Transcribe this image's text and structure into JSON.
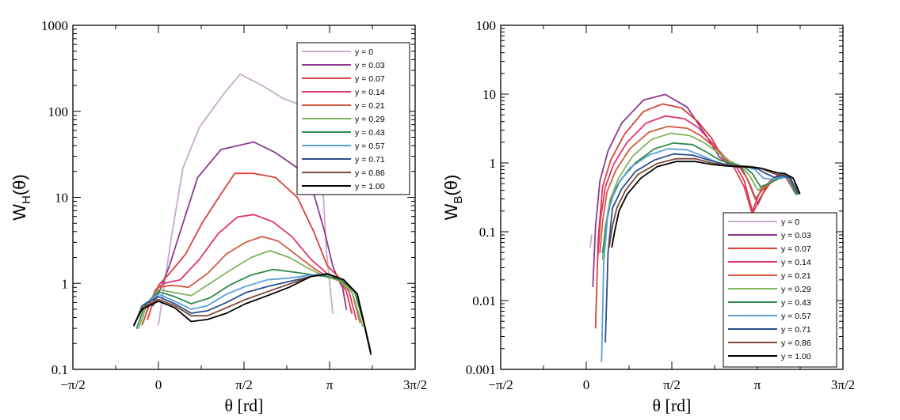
{
  "chart_data": [
    {
      "type": "line",
      "ylabel_main": "W",
      "ylabel_sub": "H",
      "ylabel_tail": "(θ)",
      "xlabel": "θ [rd]",
      "yscale": "log",
      "ylim": [
        0.1,
        1000
      ],
      "xlim": [
        -1.5708,
        4.7124
      ],
      "x_ticks": [
        {
          "value": -1.5708,
          "label": "−π/2"
        },
        {
          "value": 0,
          "label": "0"
        },
        {
          "value": 1.5708,
          "label": "π/2"
        },
        {
          "value": 3.1416,
          "label": "π"
        },
        {
          "value": 4.7124,
          "label": "3π/2"
        }
      ],
      "y_ticks": [
        {
          "value": 0.1,
          "label": "0.1"
        },
        {
          "value": 1,
          "label": "1"
        },
        {
          "value": 10,
          "label": "10"
        },
        {
          "value": 100,
          "label": "100"
        },
        {
          "value": 1000,
          "label": "1000"
        }
      ],
      "legend_position": "top-right",
      "series": [
        {
          "name": "y = 0",
          "color": "#c9a8cf",
          "x": [
            0.0,
            0.23,
            0.45,
            0.75,
            1.2,
            1.5,
            1.9,
            2.3,
            2.75,
            2.92,
            3.0,
            3.08,
            3.2
          ],
          "y": [
            0.33,
            3.2,
            22,
            65,
            160,
            270,
            200,
            140,
            110,
            100,
            22,
            2.5,
            0.45
          ]
        },
        {
          "name": "y = 0.03",
          "color": "#8b3a8f",
          "x": [
            -0.1,
            -0.02,
            0.05,
            0.2,
            0.45,
            0.72,
            1.15,
            1.75,
            2.15,
            2.55,
            2.85,
            3.05,
            3.2,
            3.3,
            3.38,
            3.45
          ],
          "y": [
            0.55,
            0.72,
            0.9,
            1.6,
            5,
            17,
            36,
            44,
            33,
            22,
            11,
            4,
            1.6,
            1.1,
            0.9,
            0.5
          ]
        },
        {
          "name": "y = 0.07",
          "color": "#d9413a",
          "x": [
            -0.2,
            -0.1,
            0.0,
            0.2,
            0.5,
            0.8,
            1.15,
            1.4,
            1.75,
            2.15,
            2.55,
            2.85,
            3.1,
            3.3,
            3.45,
            3.55
          ],
          "y": [
            0.38,
            0.6,
            0.95,
            1.3,
            2.2,
            5,
            11,
            19,
            19,
            17,
            10,
            4,
            1.6,
            1.2,
            0.8,
            0.45
          ]
        },
        {
          "name": "y = 0.14",
          "color": "#e2336e",
          "x": [
            -0.28,
            -0.18,
            -0.05,
            0.1,
            0.4,
            0.75,
            1.1,
            1.45,
            1.75,
            2.1,
            2.45,
            2.8,
            3.1,
            3.35,
            3.5,
            3.63
          ],
          "y": [
            0.35,
            0.55,
            0.85,
            1.0,
            1.1,
            1.9,
            3.8,
            5.9,
            6.3,
            5.2,
            3.5,
            1.9,
            1.3,
            1.1,
            0.8,
            0.38
          ]
        },
        {
          "name": "y = 0.21",
          "color": "#cf5c3f",
          "x": [
            -0.3,
            -0.15,
            0.0,
            0.25,
            0.55,
            0.9,
            1.25,
            1.6,
            1.9,
            2.2,
            2.55,
            2.85,
            3.1,
            3.35,
            3.55,
            3.7
          ],
          "y": [
            0.33,
            0.6,
            0.9,
            0.95,
            0.9,
            1.3,
            2.2,
            3.0,
            3.5,
            3.1,
            2.1,
            1.5,
            1.2,
            1.05,
            0.8,
            0.35
          ]
        },
        {
          "name": "y = 0.29",
          "color": "#7fb55a",
          "x": [
            -0.36,
            -0.2,
            0.0,
            0.3,
            0.6,
            0.95,
            1.3,
            1.7,
            2.05,
            2.4,
            2.75,
            3.05,
            3.3,
            3.55,
            3.75
          ],
          "y": [
            0.3,
            0.6,
            0.85,
            0.78,
            0.72,
            1.0,
            1.4,
            2.0,
            2.4,
            2.0,
            1.5,
            1.2,
            1.1,
            0.8,
            0.32
          ]
        },
        {
          "name": "y = 0.43",
          "color": "#2f8a4c",
          "x": [
            -0.4,
            -0.25,
            0.0,
            0.3,
            0.6,
            0.95,
            1.3,
            1.7,
            2.1,
            2.5,
            2.85,
            3.1,
            3.35,
            3.6,
            3.8
          ],
          "y": [
            0.3,
            0.55,
            0.8,
            0.7,
            0.58,
            0.68,
            0.95,
            1.25,
            1.45,
            1.35,
            1.25,
            1.2,
            1.1,
            0.8,
            0.3
          ]
        },
        {
          "name": "y = 0.57",
          "color": "#5a9fd6",
          "x": [
            -0.45,
            -0.3,
            0.0,
            0.3,
            0.6,
            0.9,
            1.25,
            1.6,
            2.0,
            2.4,
            2.8,
            3.1,
            3.4,
            3.65,
            3.85
          ],
          "y": [
            0.32,
            0.55,
            0.75,
            0.62,
            0.5,
            0.55,
            0.75,
            0.92,
            1.1,
            1.15,
            1.25,
            1.3,
            1.1,
            0.75,
            0.22
          ]
        },
        {
          "name": "y = 0.71",
          "color": "#2a4f8a",
          "x": [
            -0.45,
            -0.3,
            0.0,
            0.3,
            0.6,
            0.9,
            1.25,
            1.6,
            2.0,
            2.4,
            2.8,
            3.1,
            3.4,
            3.65,
            3.88
          ],
          "y": [
            0.32,
            0.55,
            0.7,
            0.58,
            0.45,
            0.48,
            0.6,
            0.78,
            0.92,
            1.05,
            1.2,
            1.3,
            1.1,
            0.75,
            0.18
          ]
        },
        {
          "name": "y = 0.86",
          "color": "#7b4a3a",
          "x": [
            -0.45,
            -0.3,
            0.0,
            0.3,
            0.6,
            0.9,
            1.25,
            1.6,
            2.0,
            2.4,
            2.8,
            3.1,
            3.4,
            3.65,
            3.9
          ],
          "y": [
            0.33,
            0.52,
            0.65,
            0.55,
            0.42,
            0.42,
            0.52,
            0.65,
            0.8,
            0.98,
            1.2,
            1.3,
            1.1,
            0.75,
            0.16
          ]
        },
        {
          "name": "y = 1.00",
          "color": "#000000",
          "x": [
            -0.45,
            -0.3,
            0.0,
            0.3,
            0.6,
            0.9,
            1.25,
            1.6,
            2.0,
            2.4,
            2.8,
            3.1,
            3.4,
            3.65,
            3.9
          ],
          "y": [
            0.33,
            0.5,
            0.62,
            0.52,
            0.36,
            0.38,
            0.45,
            0.58,
            0.72,
            0.9,
            1.2,
            1.28,
            1.1,
            0.75,
            0.15
          ]
        }
      ]
    },
    {
      "type": "line",
      "ylabel_main": "W",
      "ylabel_sub": "B",
      "ylabel_tail": "(θ)",
      "xlabel": "θ [rd]",
      "yscale": "log",
      "ylim": [
        0.001,
        100
      ],
      "xlim": [
        -1.5708,
        4.7124
      ],
      "x_ticks": [
        {
          "value": -1.5708,
          "label": "−π/2"
        },
        {
          "value": 0,
          "label": "0"
        },
        {
          "value": 1.5708,
          "label": "π/2"
        },
        {
          "value": 3.1416,
          "label": "π"
        },
        {
          "value": 4.7124,
          "label": "3π/2"
        }
      ],
      "y_ticks": [
        {
          "value": 0.001,
          "label": "0.001"
        },
        {
          "value": 0.01,
          "label": "0.01"
        },
        {
          "value": 0.1,
          "label": "0.1"
        },
        {
          "value": 1,
          "label": "1"
        },
        {
          "value": 10,
          "label": "10"
        },
        {
          "value": 100,
          "label": "100"
        }
      ],
      "legend_position": "bottom-right",
      "series": [
        {
          "name": "y = 0",
          "color": "#c9a8cf",
          "x": [
            0.07,
            0.1
          ],
          "y": [
            0.06,
            0.09
          ]
        },
        {
          "name": "y = 0.03",
          "color": "#8b3a8f",
          "x": [
            0.12,
            0.17,
            0.25,
            0.4,
            0.65,
            1.05,
            1.45,
            1.85,
            2.2,
            2.45,
            2.65,
            2.85,
            3.0,
            3.15,
            3.3,
            3.5,
            3.7,
            3.85
          ],
          "y": [
            0.016,
            0.12,
            0.55,
            1.5,
            3.8,
            8.2,
            9.9,
            6.5,
            2.5,
            1.2,
            0.9,
            0.85,
            0.5,
            0.25,
            0.45,
            0.65,
            0.65,
            0.35
          ]
        },
        {
          "name": "y = 0.07",
          "color": "#d9413a",
          "x": [
            0.17,
            0.22,
            0.3,
            0.45,
            0.7,
            1.05,
            1.4,
            1.75,
            2.05,
            2.3,
            2.5,
            2.7,
            2.9,
            3.05,
            3.2,
            3.45,
            3.65,
            3.85
          ],
          "y": [
            0.004,
            0.08,
            0.45,
            1.1,
            2.6,
            5.6,
            7.2,
            6.3,
            4.0,
            2.3,
            1.2,
            0.9,
            0.45,
            0.18,
            0.32,
            0.62,
            0.65,
            0.35
          ]
        },
        {
          "name": "y = 0.14",
          "color": "#e2336e",
          "x": [
            0.21,
            0.26,
            0.35,
            0.5,
            0.75,
            1.1,
            1.45,
            1.8,
            2.05,
            2.3,
            2.55,
            2.75,
            2.9,
            3.05,
            3.2,
            3.45,
            3.65,
            3.85
          ],
          "y": [
            0.04,
            0.15,
            0.45,
            0.95,
            2.0,
            3.8,
            4.8,
            4.4,
            3.3,
            2.0,
            1.2,
            0.9,
            0.55,
            0.2,
            0.4,
            0.62,
            0.65,
            0.35
          ]
        },
        {
          "name": "y = 0.21",
          "color": "#cf5c3f",
          "x": [
            0.25,
            0.3,
            0.38,
            0.55,
            0.8,
            1.15,
            1.5,
            1.85,
            2.1,
            2.35,
            2.6,
            2.8,
            2.95,
            3.1,
            3.25,
            3.5,
            3.7,
            3.85
          ],
          "y": [
            0.05,
            0.14,
            0.38,
            0.8,
            1.6,
            2.8,
            3.4,
            3.2,
            2.5,
            1.7,
            1.1,
            0.9,
            0.6,
            0.3,
            0.42,
            0.6,
            0.63,
            0.35
          ]
        },
        {
          "name": "y = 0.29",
          "color": "#7fb55a",
          "x": [
            0.3,
            0.35,
            0.44,
            0.6,
            0.85,
            1.2,
            1.55,
            1.9,
            2.15,
            2.4,
            2.65,
            2.85,
            3.0,
            3.15,
            3.3,
            3.5,
            3.7,
            3.85
          ],
          "y": [
            0.04,
            0.12,
            0.3,
            0.62,
            1.25,
            2.2,
            2.7,
            2.5,
            2.0,
            1.45,
            1.05,
            0.9,
            0.65,
            0.4,
            0.48,
            0.6,
            0.63,
            0.35
          ]
        },
        {
          "name": "y = 0.43",
          "color": "#2f8a4c",
          "x": [
            0.3,
            0.36,
            0.45,
            0.62,
            0.9,
            1.25,
            1.6,
            1.95,
            2.2,
            2.45,
            2.7,
            2.9,
            3.05,
            3.2,
            3.35,
            3.55,
            3.72,
            3.85
          ],
          "y": [
            0.05,
            0.12,
            0.28,
            0.55,
            1.0,
            1.6,
            1.95,
            1.85,
            1.45,
            1.1,
            0.95,
            0.88,
            0.7,
            0.45,
            0.5,
            0.6,
            0.63,
            0.35
          ]
        },
        {
          "name": "y = 0.57",
          "color": "#5a9fd6",
          "x": [
            0.28,
            0.32,
            0.4,
            0.55,
            0.8,
            1.15,
            1.5,
            1.85,
            2.15,
            2.45,
            2.75,
            2.95,
            3.1,
            3.25,
            3.4,
            3.58,
            3.75,
            3.88
          ],
          "y": [
            0.0013,
            0.035,
            0.2,
            0.45,
            0.85,
            1.3,
            1.6,
            1.55,
            1.25,
            0.98,
            0.92,
            0.88,
            0.8,
            0.6,
            0.58,
            0.62,
            0.6,
            0.35
          ]
        },
        {
          "name": "y = 0.71",
          "color": "#2a4f8a",
          "x": [
            0.35,
            0.4,
            0.48,
            0.65,
            0.9,
            1.25,
            1.6,
            1.95,
            2.25,
            2.55,
            2.85,
            3.0,
            3.15,
            3.3,
            3.45,
            3.6,
            3.75,
            3.88
          ],
          "y": [
            0.0025,
            0.05,
            0.22,
            0.42,
            0.75,
            1.1,
            1.35,
            1.3,
            1.1,
            0.95,
            0.9,
            0.88,
            0.82,
            0.7,
            0.62,
            0.65,
            0.6,
            0.36
          ]
        },
        {
          "name": "y = 0.86",
          "color": "#7b4a3a",
          "x": [
            0.42,
            0.48,
            0.56,
            0.72,
            0.95,
            1.3,
            1.65,
            2.0,
            2.3,
            2.6,
            2.9,
            3.05,
            3.2,
            3.35,
            3.5,
            3.65,
            3.8,
            3.9
          ],
          "y": [
            0.06,
            0.12,
            0.22,
            0.4,
            0.68,
            0.98,
            1.15,
            1.15,
            1.0,
            0.92,
            0.9,
            0.88,
            0.84,
            0.75,
            0.68,
            0.68,
            0.6,
            0.36
          ]
        },
        {
          "name": "y = 1.00",
          "color": "#000000",
          "x": [
            0.47,
            0.52,
            0.6,
            0.75,
            1.0,
            1.3,
            1.65,
            2.0,
            2.3,
            2.6,
            2.9,
            3.05,
            3.2,
            3.35,
            3.5,
            3.65,
            3.8,
            3.92
          ],
          "y": [
            0.06,
            0.1,
            0.2,
            0.35,
            0.6,
            0.88,
            1.05,
            1.05,
            0.95,
            0.9,
            0.88,
            0.86,
            0.84,
            0.78,
            0.72,
            0.7,
            0.6,
            0.36
          ]
        }
      ]
    }
  ]
}
